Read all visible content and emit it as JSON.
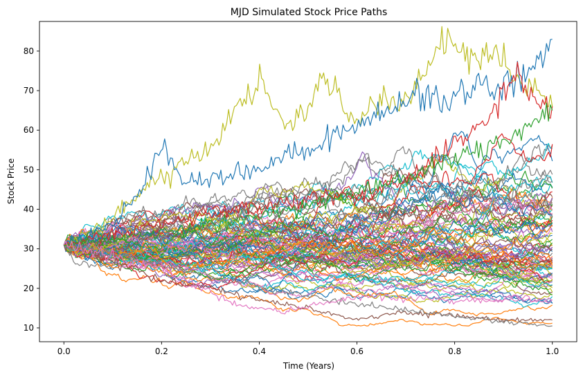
{
  "chart_data": {
    "type": "line",
    "title": "MJD Simulated Stock Price Paths",
    "xlabel": "Time (Years)",
    "ylabel": "Stock Price",
    "xlim": [
      -0.05,
      1.05
    ],
    "ylim": [
      6.5,
      87.5
    ],
    "grid": false,
    "legend": "none",
    "x_ticks": [
      0.0,
      0.2,
      0.4,
      0.6,
      0.8,
      1.0
    ],
    "x_tick_labels": [
      "0.0",
      "0.2",
      "0.4",
      "0.6",
      "0.8",
      "1.0"
    ],
    "y_ticks": [
      10,
      20,
      30,
      40,
      50,
      60,
      70,
      80
    ],
    "y_tick_labels": [
      "10",
      "20",
      "30",
      "40",
      "50",
      "60",
      "70",
      "80"
    ],
    "initial_price": 31,
    "num_paths": 100,
    "palette": [
      "#1f77b4",
      "#ff7f0e",
      "#2ca02c",
      "#d62728",
      "#9467bd",
      "#8c564b",
      "#e377c2",
      "#7f7f7f",
      "#bcbd22",
      "#17becf"
    ],
    "highlighted_paths": [
      {
        "color": "#bcbd22",
        "x": [
          0,
          0.1,
          0.2,
          0.3,
          0.35,
          0.4,
          0.45,
          0.5,
          0.53,
          0.6,
          0.65,
          0.7,
          0.75,
          0.79,
          0.83,
          0.88,
          0.93,
          0.97,
          1.0
        ],
        "y": [
          31,
          38,
          49,
          55,
          65,
          72,
          62,
          66,
          74,
          63,
          68,
          67,
          76,
          83,
          78,
          81,
          72,
          70,
          66
        ]
      },
      {
        "color": "#1f77b4",
        "x": [
          0,
          0.1,
          0.15,
          0.2,
          0.25,
          0.3,
          0.4,
          0.5,
          0.6,
          0.65,
          0.7,
          0.8,
          0.85,
          0.9,
          0.95,
          0.98,
          1.0
        ],
        "y": [
          31,
          36,
          43,
          56,
          46,
          48,
          50,
          55,
          62,
          64,
          68,
          68,
          71,
          71,
          75,
          79,
          83
        ]
      },
      {
        "color": "#d62728",
        "x": [
          0,
          0.2,
          0.4,
          0.6,
          0.7,
          0.8,
          0.85,
          0.9,
          0.93,
          0.96,
          1.0
        ],
        "y": [
          31,
          36,
          41,
          44,
          47,
          56,
          61,
          70,
          74,
          68,
          66
        ]
      },
      {
        "color": "#8c564b",
        "x": [
          0,
          0.1,
          0.2,
          0.3,
          0.4,
          0.5,
          0.6,
          0.7,
          0.8,
          0.9,
          1.0
        ],
        "y": [
          31,
          27,
          22,
          20,
          17,
          15,
          12,
          14,
          13,
          12,
          12
        ]
      },
      {
        "color": "#7f7f7f",
        "x": [
          0,
          0.2,
          0.4,
          0.6,
          0.8,
          1.0
        ],
        "y": [
          31,
          26,
          20,
          16,
          13,
          10.5
        ]
      },
      {
        "color": "#2ca02c",
        "x": [
          0,
          0.2,
          0.4,
          0.6,
          0.8,
          0.9,
          1.0
        ],
        "y": [
          31,
          34,
          38,
          44,
          52,
          58,
          65
        ]
      },
      {
        "color": "#e377c2",
        "x": [
          0,
          0.2,
          0.35,
          0.45,
          0.6,
          0.8,
          1.0
        ],
        "y": [
          31,
          25,
          16,
          14,
          18,
          17,
          17
        ]
      }
    ]
  }
}
